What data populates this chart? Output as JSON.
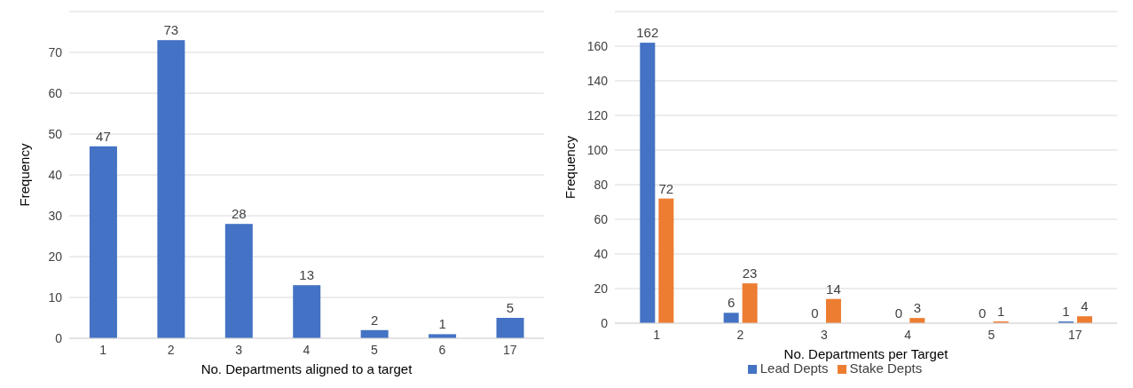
{
  "chart_data": [
    {
      "type": "bar",
      "categories": [
        "1",
        "2",
        "3",
        "4",
        "5",
        "6",
        "17"
      ],
      "values": [
        47,
        73,
        28,
        13,
        2,
        1,
        5
      ],
      "color": "#4472c4",
      "xlabel": "No. Departments aligned to a target",
      "ylabel": "Frequency",
      "ylim": [
        0,
        80
      ],
      "yticks": [
        0,
        10,
        20,
        30,
        40,
        50,
        60,
        70
      ],
      "grid": "y",
      "data_labels": true
    },
    {
      "type": "bar",
      "categories": [
        "1",
        "2",
        "3",
        "4",
        "5",
        "17"
      ],
      "series": [
        {
          "name": "Lead Depts",
          "color": "#4472c4",
          "values": [
            162,
            6,
            0,
            0,
            0,
            1
          ]
        },
        {
          "name": "Stake Depts",
          "color": "#ed7d31",
          "values": [
            72,
            23,
            14,
            3,
            1,
            4
          ]
        }
      ],
      "xlabel": "No. Departments per Target",
      "ylabel": "Frequency",
      "ylim": [
        0,
        180
      ],
      "yticks": [
        0,
        20,
        40,
        60,
        80,
        100,
        120,
        140,
        160
      ],
      "grid": "y",
      "legend": "bottom",
      "data_labels": true
    }
  ]
}
